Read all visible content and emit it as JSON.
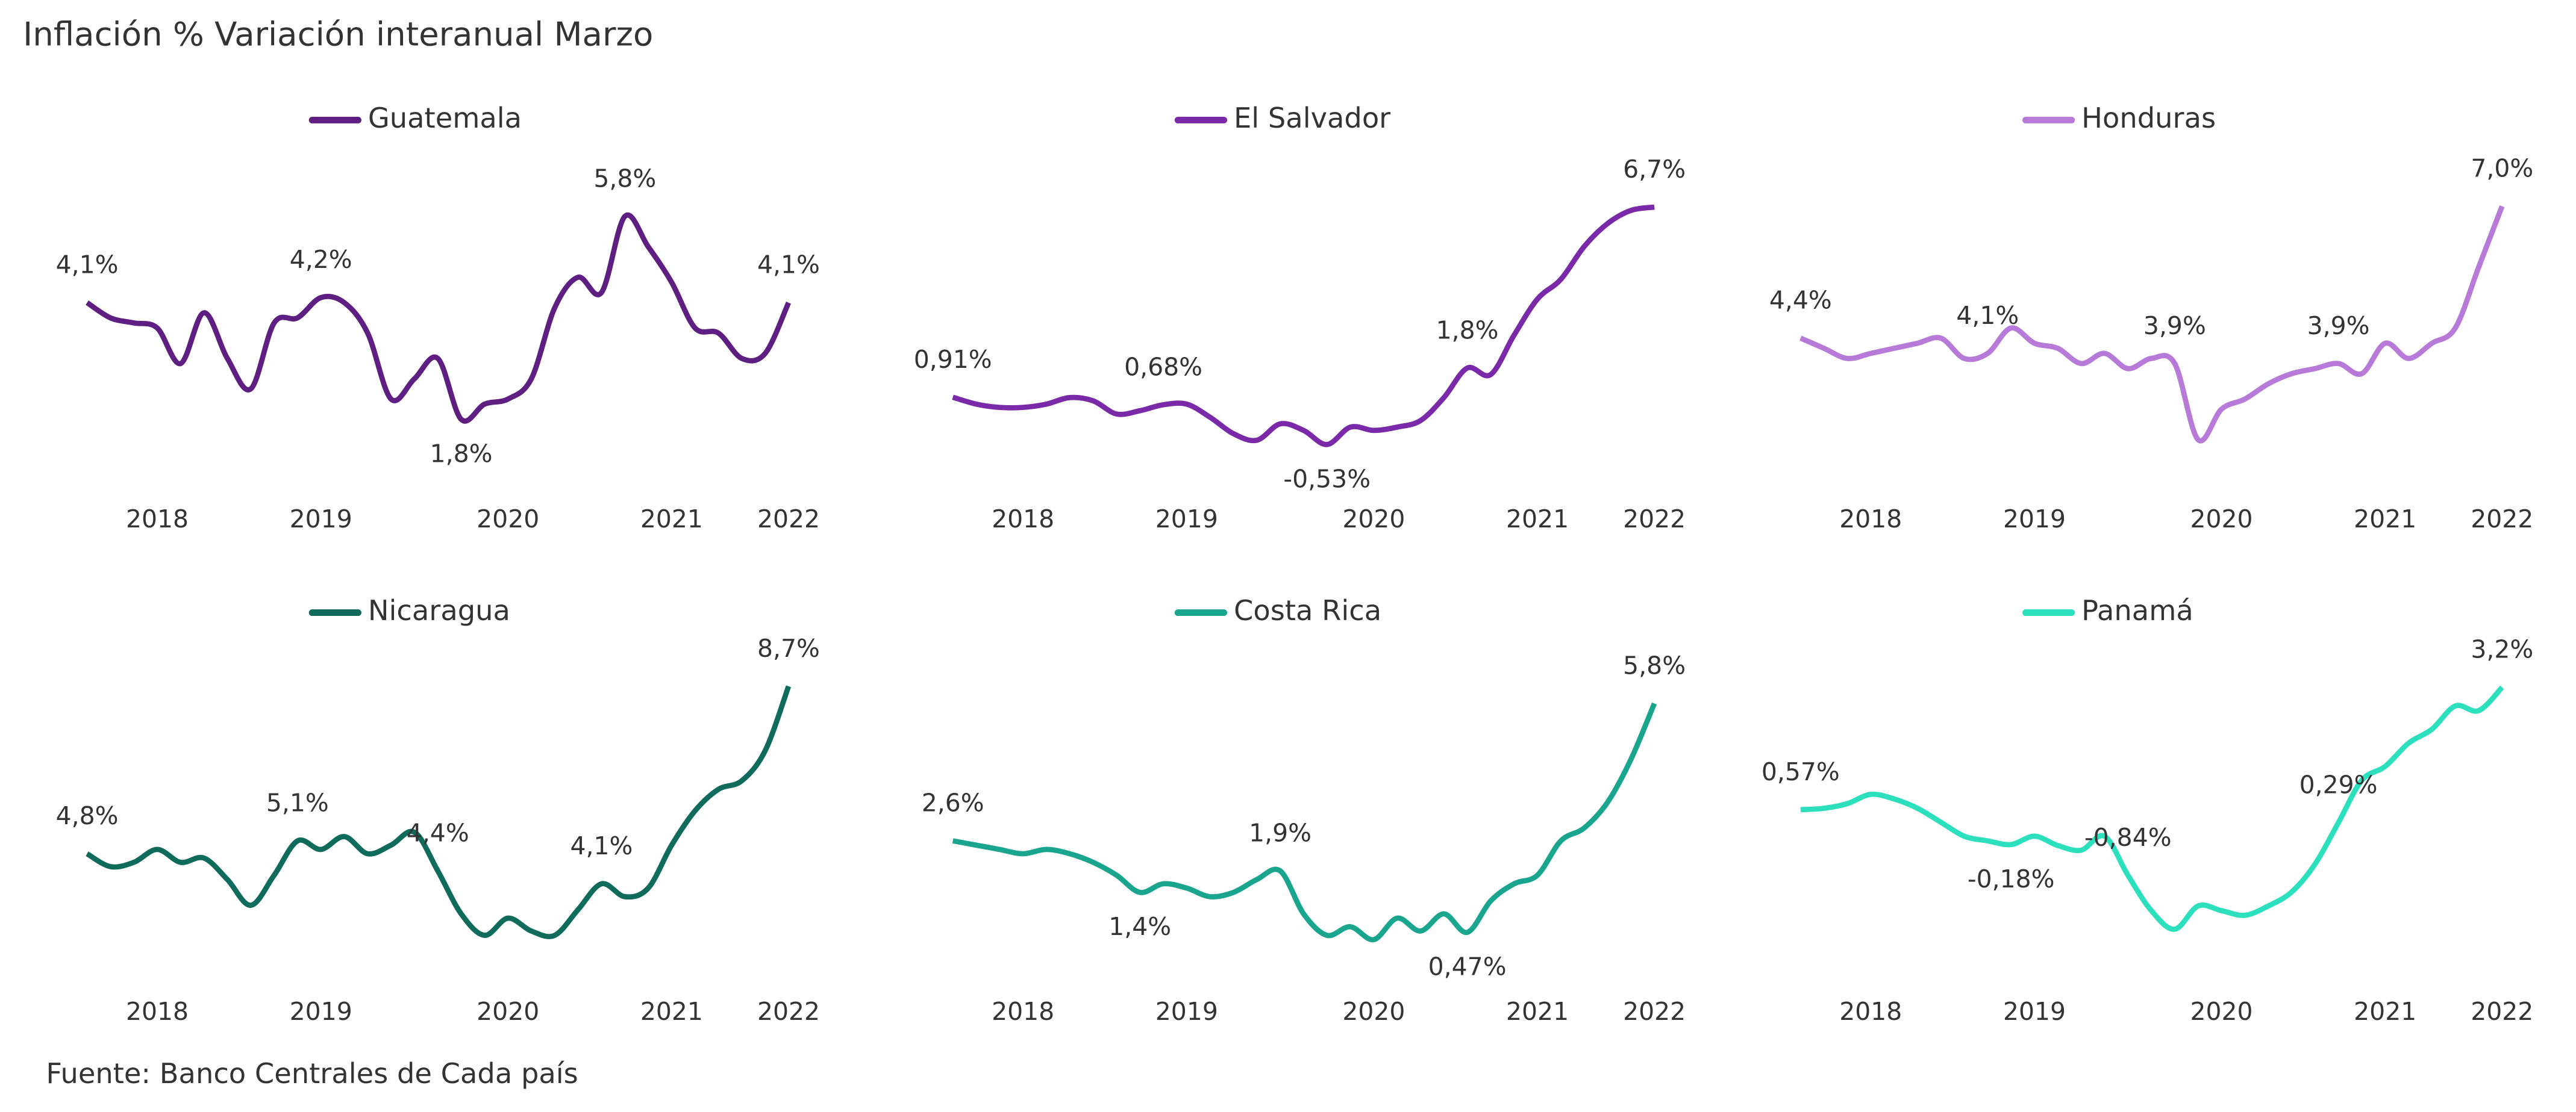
{
  "title": "Inflación % Variación interanual Marzo",
  "source": "Fuente: Banco Centrales de Cada país",
  "chart_data": [
    {
      "type": "line",
      "categories": [
        null,
        null,
        null,
        "2018",
        null,
        null,
        null,
        null,
        null,
        null,
        "2019",
        null,
        null,
        null,
        null,
        null,
        null,
        null,
        "2020",
        null,
        null,
        null,
        null,
        null,
        null,
        "2021",
        null,
        null,
        null,
        null,
        "2022"
      ],
      "series": [
        {
          "name": "Guatemala",
          "color": "#5e1e82",
          "values": [
            4.1,
            3.8,
            3.7,
            3.6,
            2.9,
            3.9,
            3.0,
            2.4,
            3.7,
            3.8,
            4.2,
            4.1,
            3.5,
            2.2,
            2.6,
            3.0,
            1.8,
            2.1,
            2.2,
            2.6,
            4.0,
            4.6,
            4.3,
            5.8,
            5.2,
            4.5,
            3.6,
            3.5,
            3.0,
            3.1,
            4.1
          ],
          "value_labels": [
            "4,1%",
            null,
            null,
            null,
            null,
            null,
            null,
            null,
            null,
            null,
            "4,2%",
            null,
            null,
            null,
            null,
            null,
            "1,8%",
            null,
            null,
            null,
            null,
            null,
            null,
            "5,8%",
            null,
            null,
            null,
            null,
            null,
            null,
            "4,1%"
          ]
        }
      ],
      "ylim": [
        1,
        6.5
      ]
    },
    {
      "type": "line",
      "categories": [
        null,
        null,
        null,
        "2018",
        null,
        null,
        null,
        null,
        null,
        null,
        "2019",
        null,
        null,
        null,
        null,
        null,
        null,
        null,
        "2020",
        null,
        null,
        null,
        null,
        null,
        null,
        "2021",
        null,
        null,
        null,
        null,
        "2022"
      ],
      "series": [
        {
          "name": "El Salvador",
          "color": "#7a2aa8",
          "values": [
            0.91,
            0.7,
            0.6,
            0.6,
            0.7,
            0.9,
            0.8,
            0.4,
            0.5,
            0.68,
            0.7,
            0.3,
            -0.2,
            -0.4,
            0.1,
            -0.1,
            -0.53,
            0.0,
            -0.1,
            0.0,
            0.2,
            0.9,
            1.8,
            1.6,
            2.8,
            3.9,
            4.5,
            5.5,
            6.2,
            6.6,
            6.7
          ],
          "value_labels": [
            "0,91%",
            null,
            null,
            null,
            null,
            null,
            null,
            null,
            null,
            "0,68%",
            null,
            null,
            null,
            null,
            null,
            null,
            "-0,53%",
            null,
            null,
            null,
            null,
            null,
            "1,8%",
            null,
            null,
            null,
            null,
            null,
            null,
            null,
            "6,7%"
          ]
        }
      ],
      "ylim": [
        -1,
        7.5
      ]
    },
    {
      "type": "line",
      "categories": [
        null,
        null,
        null,
        "2018",
        null,
        null,
        null,
        null,
        null,
        null,
        "2019",
        null,
        null,
        null,
        null,
        null,
        null,
        null,
        "2020",
        null,
        null,
        null,
        null,
        null,
        null,
        "2021",
        null,
        null,
        null,
        null,
        "2022"
      ],
      "series": [
        {
          "name": "Honduras",
          "color": "#b77ad8",
          "values": [
            4.4,
            4.2,
            4.0,
            4.1,
            4.2,
            4.3,
            4.4,
            4.0,
            4.1,
            4.6,
            4.3,
            4.2,
            3.9,
            4.1,
            3.8,
            4.0,
            3.9,
            2.4,
            3.0,
            3.2,
            3.5,
            3.7,
            3.8,
            3.9,
            3.7,
            4.3,
            4.0,
            4.3,
            4.6,
            5.8,
            7.0
          ],
          "value_labels": [
            "4,4%",
            null,
            null,
            null,
            null,
            null,
            null,
            null,
            "4,1%",
            null,
            null,
            null,
            null,
            null,
            null,
            null,
            "3,9%",
            null,
            null,
            null,
            null,
            null,
            null,
            "3,9%",
            null,
            null,
            null,
            null,
            null,
            null,
            "7,0%"
          ]
        }
      ],
      "ylim": [
        2,
        7.5
      ]
    },
    {
      "type": "line",
      "categories": [
        null,
        null,
        null,
        "2018",
        null,
        null,
        null,
        null,
        null,
        null,
        "2019",
        null,
        null,
        null,
        null,
        null,
        null,
        null,
        "2020",
        null,
        null,
        null,
        null,
        null,
        null,
        "2021",
        null,
        null,
        null,
        null,
        "2022"
      ],
      "series": [
        {
          "name": "Nicaragua",
          "color": "#0f6b5c",
          "values": [
            4.8,
            4.5,
            4.6,
            4.9,
            4.6,
            4.7,
            4.2,
            3.6,
            4.3,
            5.1,
            4.9,
            5.2,
            4.8,
            5.0,
            5.3,
            4.4,
            3.4,
            2.9,
            3.3,
            3.0,
            2.9,
            3.5,
            4.1,
            3.8,
            4.0,
            5.0,
            5.8,
            6.3,
            6.5,
            7.2,
            8.7
          ],
          "value_labels": [
            "4,8%",
            null,
            null,
            null,
            null,
            null,
            null,
            null,
            null,
            "5,1%",
            null,
            null,
            null,
            null,
            null,
            "4,4%",
            null,
            null,
            null,
            null,
            null,
            null,
            "4,1%",
            null,
            null,
            null,
            null,
            null,
            null,
            null,
            "8,7%"
          ]
        }
      ],
      "ylim": [
        2.5,
        9
      ]
    },
    {
      "type": "line",
      "categories": [
        null,
        null,
        null,
        "2018",
        null,
        null,
        null,
        null,
        null,
        null,
        "2019",
        null,
        null,
        null,
        null,
        null,
        null,
        null,
        "2020",
        null,
        null,
        null,
        null,
        null,
        null,
        "2021",
        null,
        null,
        null,
        null,
        "2022"
      ],
      "series": [
        {
          "name": "Costa Rica",
          "color": "#1aa58e",
          "values": [
            2.6,
            2.5,
            2.4,
            2.3,
            2.4,
            2.3,
            2.1,
            1.8,
            1.4,
            1.6,
            1.5,
            1.3,
            1.4,
            1.7,
            1.9,
            0.9,
            0.4,
            0.6,
            0.3,
            0.8,
            0.5,
            0.9,
            0.47,
            1.2,
            1.6,
            1.8,
            2.6,
            2.9,
            3.5,
            4.5,
            5.8
          ],
          "value_labels": [
            "2,6%",
            null,
            null,
            null,
            null,
            null,
            null,
            null,
            "1,4%",
            null,
            null,
            null,
            null,
            null,
            "1,9%",
            null,
            null,
            null,
            null,
            null,
            null,
            null,
            "0,47%",
            null,
            null,
            null,
            null,
            null,
            null,
            null,
            "5,8%"
          ]
        }
      ],
      "ylim": [
        0,
        6.5
      ]
    },
    {
      "type": "line",
      "categories": [
        null,
        null,
        null,
        "2018",
        null,
        null,
        null,
        null,
        null,
        null,
        "2019",
        null,
        null,
        null,
        null,
        null,
        null,
        null,
        "2020",
        null,
        null,
        null,
        null,
        null,
        null,
        "2021",
        null,
        null,
        null,
        null,
        "2022"
      ],
      "series": [
        {
          "name": "Panamá",
          "color": "#2de0bd",
          "values": [
            0.57,
            0.6,
            0.7,
            0.9,
            0.8,
            0.6,
            0.3,
            0.0,
            -0.1,
            -0.18,
            0.0,
            -0.2,
            -0.3,
            0.0,
            -0.84,
            -1.6,
            -2.0,
            -1.5,
            -1.6,
            -1.7,
            -1.5,
            -1.2,
            -0.6,
            0.29,
            1.2,
            1.5,
            2.0,
            2.3,
            2.8,
            2.7,
            3.2
          ],
          "value_labels": [
            "0,57%",
            null,
            null,
            null,
            null,
            null,
            null,
            null,
            null,
            "-0,18%",
            null,
            null,
            null,
            null,
            "-0,84%",
            null,
            null,
            null,
            null,
            null,
            null,
            null,
            null,
            "0,29%",
            null,
            null,
            null,
            null,
            null,
            null,
            "3,2%"
          ]
        }
      ],
      "ylim": [
        -2.5,
        3.5
      ]
    }
  ]
}
